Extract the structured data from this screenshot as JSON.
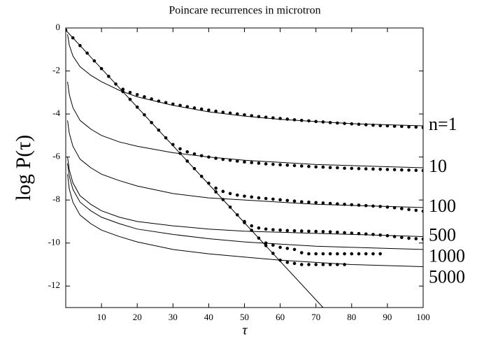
{
  "chart_data": {
    "type": "scatter",
    "title": "Poincare recurrences in microtron",
    "xlabel": "τ",
    "ylabel": "log P(τ)",
    "xlim": [
      0,
      100
    ],
    "ylim": [
      -13,
      0
    ],
    "xticks": [
      10,
      20,
      30,
      40,
      50,
      60,
      70,
      80,
      90,
      100
    ],
    "yticks": [
      0,
      -2,
      -4,
      -6,
      -8,
      -10,
      -12
    ],
    "grid": false,
    "x": [
      0,
      2,
      4,
      6,
      8,
      10,
      12,
      14,
      16,
      18,
      20,
      22,
      24,
      26,
      28,
      30,
      32,
      34,
      36,
      38,
      40,
      42,
      44,
      46,
      48,
      50,
      52,
      54,
      56,
      58,
      60,
      62,
      64,
      66,
      68,
      70,
      72,
      74,
      76,
      78,
      80,
      82,
      84,
      86,
      88,
      90,
      92,
      94,
      96,
      98,
      100
    ],
    "series": [
      {
        "style": "markers",
        "color": "#000000",
        "values": [
          -0.1,
          -0.46,
          -0.82,
          -1.17,
          -1.53,
          -1.89,
          -2.25,
          -2.61,
          -2.85,
          -3.0,
          -3.1,
          -3.2,
          -3.3,
          -3.4,
          -3.47,
          -3.54,
          -3.6,
          -3.66,
          -3.72,
          -3.77,
          -3.82,
          -3.87,
          -3.92,
          -3.96,
          -4.0,
          -4.04,
          -4.08,
          -4.12,
          -4.15,
          -4.18,
          -4.21,
          -4.24,
          -4.27,
          -4.3,
          -4.32,
          -4.35,
          -4.37,
          -4.4,
          -4.42,
          -4.44,
          -4.46,
          -4.48,
          -4.5,
          -4.52,
          -4.54,
          -4.55,
          -4.57,
          -4.58,
          -4.6,
          -4.61,
          -4.63
        ]
      },
      {
        "style": "markers",
        "color": "#000000",
        "values": [
          null,
          null,
          null,
          null,
          null,
          null,
          null,
          null,
          -2.96,
          -3.32,
          -3.68,
          -4.04,
          -4.4,
          -4.75,
          -5.11,
          -5.42,
          -5.62,
          -5.76,
          -5.86,
          -5.94,
          -6.0,
          -6.06,
          -6.11,
          -6.15,
          -6.19,
          -6.23,
          -6.26,
          -6.29,
          -6.32,
          -6.34,
          -6.36,
          -6.38,
          -6.4,
          -6.42,
          -6.44,
          -6.46,
          -6.47,
          -6.49,
          -6.5,
          -6.52,
          -6.53,
          -6.54,
          -6.55,
          -6.56,
          -6.57,
          -6.58,
          -6.59,
          -6.6,
          -6.61,
          -6.62,
          -6.63
        ]
      },
      {
        "style": "markers",
        "color": "#000000",
        "values": [
          null,
          null,
          null,
          null,
          null,
          null,
          null,
          null,
          null,
          null,
          null,
          null,
          null,
          null,
          null,
          null,
          -5.83,
          -6.19,
          -6.54,
          -6.9,
          -7.22,
          -7.45,
          -7.6,
          -7.7,
          -7.77,
          -7.82,
          -7.86,
          -7.9,
          -7.93,
          -7.96,
          -7.99,
          -8.02,
          -8.05,
          -8.08,
          -8.1,
          -8.12,
          -8.14,
          -8.16,
          -8.18,
          -8.2,
          -8.22,
          -8.24,
          -8.26,
          -8.28,
          -8.3,
          -8.33,
          -8.36,
          -8.4,
          -8.44,
          -8.48,
          -8.52
        ]
      },
      {
        "style": "markers",
        "color": "#000000",
        "values": [
          null,
          null,
          null,
          null,
          null,
          null,
          null,
          null,
          null,
          null,
          null,
          null,
          null,
          null,
          null,
          null,
          null,
          null,
          null,
          null,
          null,
          -7.62,
          -7.98,
          -8.33,
          -8.69,
          -9.0,
          -9.2,
          -9.3,
          -9.35,
          -9.38,
          -9.4,
          -9.42,
          -9.43,
          -9.44,
          -9.45,
          -9.46,
          -9.47,
          -9.48,
          -9.5,
          -9.52,
          -9.54,
          -9.56,
          -9.58,
          -9.6,
          -9.63,
          -9.66,
          -9.7,
          -9.74,
          -9.78,
          -9.8,
          -9.82
        ]
      },
      {
        "style": "markers",
        "color": "#000000",
        "values": [
          null,
          null,
          null,
          null,
          null,
          null,
          null,
          null,
          null,
          null,
          null,
          null,
          null,
          null,
          null,
          null,
          null,
          null,
          null,
          null,
          null,
          null,
          null,
          null,
          null,
          -9.05,
          -9.41,
          -9.77,
          -10.0,
          -10.1,
          -10.2,
          -10.25,
          -10.3,
          -10.45,
          -10.5,
          -10.5,
          -10.5,
          -10.5,
          -10.5,
          -10.5,
          -10.5,
          -10.5,
          -10.5,
          -10.5,
          -10.5,
          null,
          null,
          null,
          null,
          null,
          null
        ]
      },
      {
        "style": "markers",
        "color": "#000000",
        "values": [
          null,
          null,
          null,
          null,
          null,
          null,
          null,
          null,
          null,
          null,
          null,
          null,
          null,
          null,
          null,
          null,
          null,
          null,
          null,
          null,
          null,
          null,
          null,
          null,
          null,
          null,
          null,
          null,
          -10.12,
          -10.48,
          -10.8,
          -10.9,
          -10.95,
          -11.0,
          -11.0,
          -11.0,
          -11.0,
          -11.0,
          -11.0,
          -11.0,
          null,
          null,
          null,
          null,
          null,
          null,
          null,
          null,
          null,
          null,
          null
        ]
      },
      {
        "style": "line",
        "name": "n=1",
        "color": "#000000",
        "x": [
          0.5,
          1,
          2,
          4,
          7,
          10,
          15,
          20,
          30,
          40,
          50,
          60,
          70,
          80,
          90,
          100
        ],
        "values": [
          -0.3,
          -0.8,
          -1.3,
          -1.8,
          -2.2,
          -2.5,
          -2.9,
          -3.2,
          -3.6,
          -3.9,
          -4.1,
          -4.25,
          -4.35,
          -4.45,
          -4.5,
          -4.55
        ]
      },
      {
        "style": "line",
        "name": "10",
        "color": "#000000",
        "x": [
          0.5,
          1,
          2,
          4,
          7,
          10,
          15,
          20,
          30,
          40,
          50,
          60,
          70,
          80,
          90,
          100
        ],
        "values": [
          -2.5,
          -3.1,
          -3.7,
          -4.3,
          -4.7,
          -5.0,
          -5.3,
          -5.5,
          -5.8,
          -6.0,
          -6.15,
          -6.25,
          -6.35,
          -6.4,
          -6.45,
          -6.5
        ]
      },
      {
        "style": "line",
        "name": "100",
        "color": "#000000",
        "x": [
          0.5,
          1,
          2,
          4,
          7,
          10,
          15,
          20,
          30,
          40,
          50,
          60,
          70,
          80,
          90,
          100
        ],
        "values": [
          -4.3,
          -4.9,
          -5.5,
          -6.1,
          -6.5,
          -6.8,
          -7.1,
          -7.35,
          -7.7,
          -7.9,
          -8.0,
          -8.1,
          -8.2,
          -8.25,
          -8.3,
          -8.35
        ]
      },
      {
        "style": "line",
        "name": "500",
        "color": "#000000",
        "x": [
          0.5,
          1,
          2,
          4,
          7,
          10,
          15,
          20,
          30,
          40,
          50,
          60,
          70,
          80,
          90,
          100
        ],
        "values": [
          -6.0,
          -6.6,
          -7.2,
          -7.8,
          -8.2,
          -8.5,
          -8.8,
          -9.0,
          -9.2,
          -9.35,
          -9.45,
          -9.5,
          -9.55,
          -9.6,
          -9.65,
          -9.7
        ]
      },
      {
        "style": "line",
        "name": "1000",
        "color": "#000000",
        "x": [
          0.5,
          1,
          2,
          4,
          7,
          10,
          15,
          20,
          30,
          40,
          50,
          60,
          70,
          80,
          90,
          100
        ],
        "values": [
          -6.3,
          -6.9,
          -7.5,
          -8.1,
          -8.5,
          -8.8,
          -9.1,
          -9.35,
          -9.6,
          -9.8,
          -9.95,
          -10.05,
          -10.15,
          -10.2,
          -10.25,
          -10.3
        ]
      },
      {
        "style": "line",
        "name": "5000",
        "color": "#000000",
        "x": [
          0.5,
          1,
          2,
          4,
          7,
          10,
          15,
          20,
          30,
          40,
          50,
          60,
          70,
          80,
          90,
          100
        ],
        "values": [
          -6.8,
          -7.5,
          -8.1,
          -8.7,
          -9.1,
          -9.4,
          -9.7,
          -9.95,
          -10.3,
          -10.5,
          -10.65,
          -10.8,
          -10.9,
          -11.0,
          -11.05,
          -11.1
        ]
      },
      {
        "style": "line",
        "color": "#000000",
        "x": [
          0,
          72
        ],
        "values": [
          -0.1,
          -13
        ]
      }
    ]
  }
}
